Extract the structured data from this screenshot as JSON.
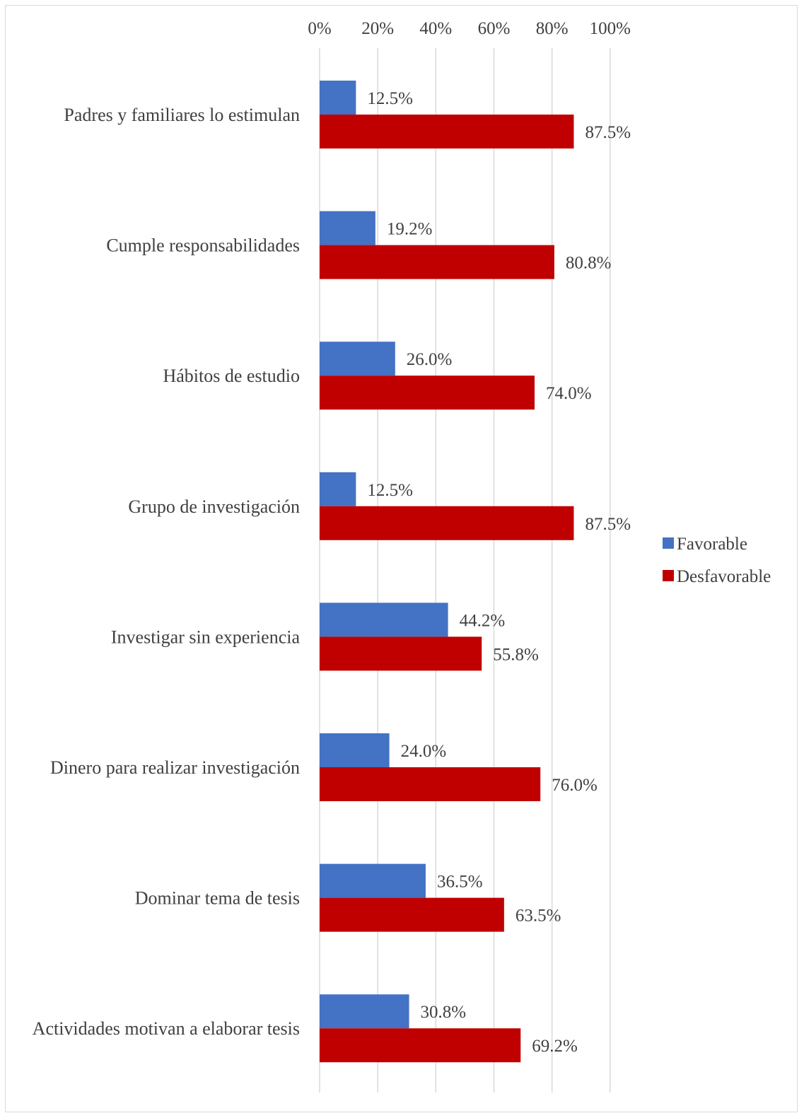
{
  "chart_data": {
    "type": "bar",
    "orientation": "horizontal",
    "categories": [
      "Padres y familiares lo estimulan",
      "Cumple responsabilidades",
      "Hábitos de estudio",
      "Grupo de investigación",
      "Investigar sin experiencia",
      "Dinero para realizar investigación",
      "Dominar tema de tesis",
      "Actividades motivan a elaborar tesis"
    ],
    "series": [
      {
        "name": "Favorable",
        "color": "#4472c4",
        "values": [
          12.5,
          19.2,
          26.0,
          12.5,
          44.2,
          24.0,
          36.5,
          30.8
        ],
        "labels": [
          "12.5%",
          "19.2%",
          "26.0%",
          "12.5%",
          "44.2%",
          "24.0%",
          "36.5%",
          "30.8%"
        ]
      },
      {
        "name": "Desfavorable",
        "color": "#c00000",
        "values": [
          87.5,
          80.8,
          74.0,
          87.5,
          55.8,
          76.0,
          63.5,
          69.2
        ],
        "labels": [
          "87.5%",
          "80.8%",
          "74.0%",
          "87.5%",
          "55.8%",
          "76.0%",
          "63.5%",
          "69.2%"
        ]
      }
    ],
    "x_ticks": [
      0,
      20,
      40,
      60,
      80,
      100
    ],
    "x_tick_labels": [
      "0%",
      "20%",
      "40%",
      "60%",
      "80%",
      "100%"
    ],
    "xlim": [
      0,
      100
    ],
    "x_axis_position": "top",
    "grid": true,
    "grid_color": "#d9d9d9",
    "legend_position": "right",
    "title": "",
    "xlabel": "",
    "ylabel": ""
  }
}
